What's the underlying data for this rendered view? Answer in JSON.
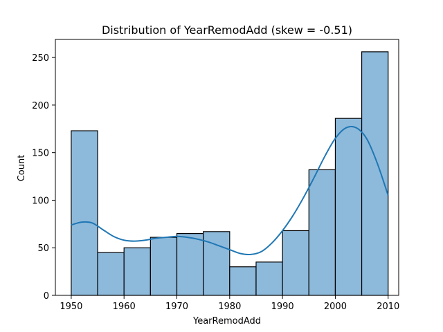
{
  "chart_data": {
    "type": "bar",
    "title": "Distribution of YearRemodAdd (skew = -0.51)",
    "xlabel": "YearRemodAdd",
    "ylabel": "Count",
    "bins": [
      {
        "start": 1950,
        "end": 1955,
        "count": 173
      },
      {
        "start": 1955,
        "end": 1960,
        "count": 45
      },
      {
        "start": 1960,
        "end": 1965,
        "count": 50
      },
      {
        "start": 1965,
        "end": 1970,
        "count": 61
      },
      {
        "start": 1970,
        "end": 1975,
        "count": 65
      },
      {
        "start": 1975,
        "end": 1980,
        "count": 67
      },
      {
        "start": 1980,
        "end": 1985,
        "count": 30
      },
      {
        "start": 1985,
        "end": 1990,
        "count": 35
      },
      {
        "start": 1990,
        "end": 1995,
        "count": 68
      },
      {
        "start": 1995,
        "end": 2000,
        "count": 132
      },
      {
        "start": 2000,
        "end": 2005,
        "count": 186
      },
      {
        "start": 2005,
        "end": 2010,
        "count": 256
      }
    ],
    "kde": {
      "x": [
        1950,
        1952,
        1954,
        1956,
        1958,
        1960,
        1962,
        1964,
        1966,
        1968,
        1970,
        1972,
        1974,
        1976,
        1978,
        1980,
        1982,
        1984,
        1986,
        1988,
        1990,
        1992,
        1994,
        1996,
        1998,
        2000,
        2002,
        2004,
        2006,
        2008,
        2010
      ],
      "y": [
        74,
        77,
        76,
        69,
        62,
        58,
        57,
        58,
        60,
        61,
        62,
        61,
        59,
        56,
        52,
        48,
        44,
        43,
        46,
        55,
        68,
        84,
        103,
        124,
        146,
        165,
        176,
        176,
        164,
        138,
        105
      ]
    },
    "xticks": [
      1950,
      1960,
      1970,
      1980,
      1990,
      2000,
      2010
    ],
    "yticks": [
      0,
      50,
      100,
      150,
      200,
      250
    ],
    "xlim": [
      1947,
      2012
    ],
    "ylim": [
      0,
      269
    ],
    "grid": false,
    "bar_fill": "#8DB9DB",
    "bar_edge": "#000000",
    "kde_color": "#1F77B4"
  }
}
